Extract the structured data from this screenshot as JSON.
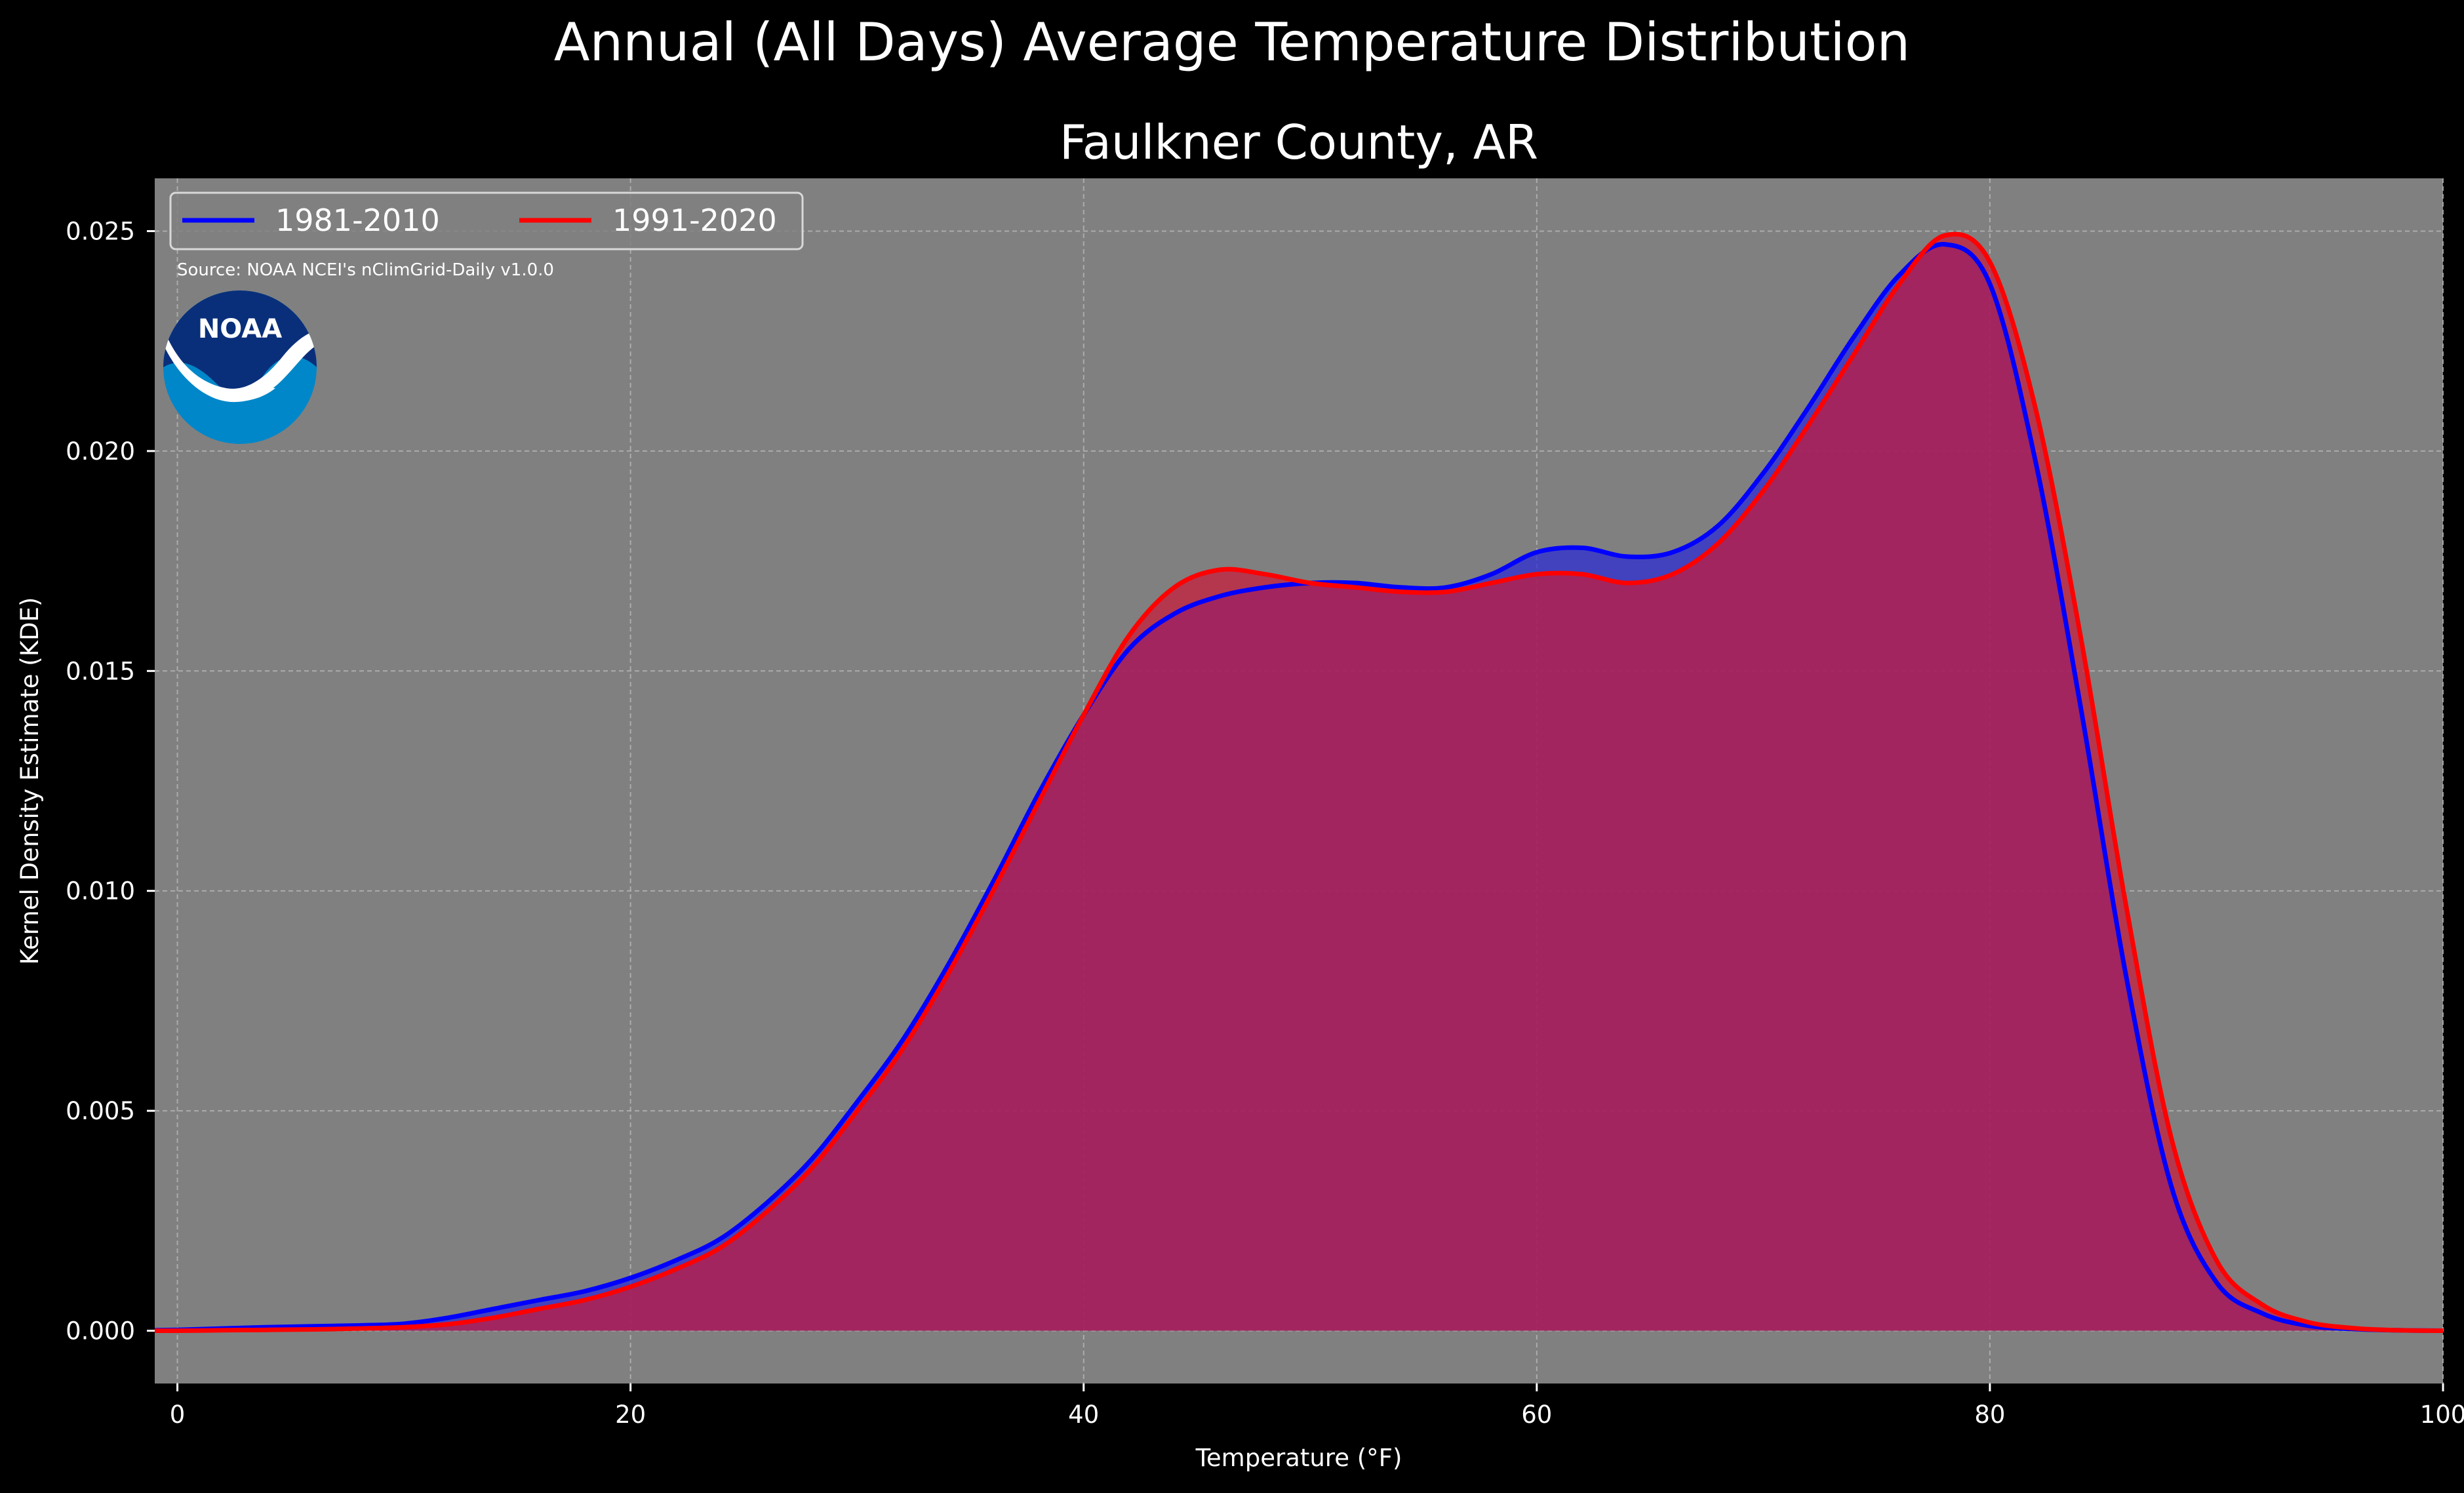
{
  "chart_data": {
    "type": "area",
    "title": "Annual (All Days) Average Temperature Distribution",
    "subtitle": "Faulkner County, AR",
    "xlabel": "Temperature (°F)",
    "ylabel": "Kernel Density Estimate (KDE)",
    "xlim": [
      -1,
      100
    ],
    "ylim": [
      -0.0012,
      0.0262
    ],
    "xticks": [
      0,
      20,
      40,
      60,
      80,
      100
    ],
    "yticks": [
      0.0,
      0.005,
      0.01,
      0.015,
      0.02,
      0.025
    ],
    "ytick_labels": [
      "0.000",
      "0.005",
      "0.010",
      "0.015",
      "0.020",
      "0.025"
    ],
    "grid": true,
    "legend_position": "top-left",
    "source_note": "Source: NOAA NCEI's nClimGrid-Daily v1.0.0",
    "logo_text": "NOAA",
    "colors": {
      "figure_bg": "#000000",
      "plot_bg": "#808080"
    },
    "series": [
      {
        "name": "1981-2010",
        "color": "#0000ff",
        "fill": "#2a2ad6",
        "x": [
          -1,
          0,
          2,
          4,
          6,
          8,
          10,
          12,
          14,
          16,
          18,
          20,
          22,
          24,
          26,
          28,
          30,
          32,
          34,
          36,
          38,
          40,
          42,
          44,
          46,
          48,
          50,
          52,
          54,
          56,
          58,
          60,
          62,
          64,
          66,
          68,
          70,
          72,
          74,
          76,
          78,
          80,
          82,
          84,
          86,
          88,
          90,
          92,
          94,
          96,
          98,
          100
        ],
        "values": [
          1e-05,
          2e-05,
          5e-05,
          8e-05,
          0.0001,
          0.00012,
          0.00016,
          0.0003,
          0.0005,
          0.0007,
          0.0009,
          0.0012,
          0.0016,
          0.0021,
          0.0029,
          0.0039,
          0.0052,
          0.0066,
          0.0083,
          0.0102,
          0.0122,
          0.014,
          0.0155,
          0.0163,
          0.0167,
          0.0169,
          0.017,
          0.017,
          0.0169,
          0.0169,
          0.0172,
          0.0177,
          0.0178,
          0.0176,
          0.0177,
          0.0183,
          0.0195,
          0.021,
          0.0226,
          0.024,
          0.0247,
          0.0238,
          0.0198,
          0.0142,
          0.0081,
          0.0033,
          0.0011,
          0.0004,
          0.00012,
          4e-05,
          1e-05,
          0.0
        ]
      },
      {
        "name": "1991-2020",
        "color": "#ff0000",
        "fill": "#c81a3a",
        "x": [
          -1,
          0,
          2,
          4,
          6,
          8,
          10,
          12,
          14,
          16,
          18,
          20,
          22,
          24,
          26,
          28,
          30,
          32,
          34,
          36,
          38,
          40,
          42,
          44,
          46,
          48,
          50,
          52,
          54,
          56,
          58,
          60,
          62,
          64,
          66,
          68,
          70,
          72,
          74,
          76,
          78,
          80,
          82,
          84,
          86,
          88,
          90,
          92,
          94,
          96,
          98,
          100
        ],
        "values": [
          0.0,
          0.0,
          1e-05,
          2e-05,
          3e-05,
          5e-05,
          8e-05,
          0.00015,
          0.0003,
          0.0005,
          0.0007,
          0.001,
          0.0014,
          0.0019,
          0.0027,
          0.0037,
          0.005,
          0.0064,
          0.0081,
          0.01,
          0.012,
          0.014,
          0.0158,
          0.0169,
          0.0173,
          0.0172,
          0.017,
          0.0169,
          0.0168,
          0.0168,
          0.017,
          0.0172,
          0.0172,
          0.017,
          0.0172,
          0.0179,
          0.0191,
          0.0206,
          0.0222,
          0.0238,
          0.0249,
          0.0243,
          0.021,
          0.0158,
          0.0097,
          0.0044,
          0.0016,
          0.0006,
          0.0002,
          6e-05,
          1e-05,
          0.0
        ]
      }
    ]
  }
}
